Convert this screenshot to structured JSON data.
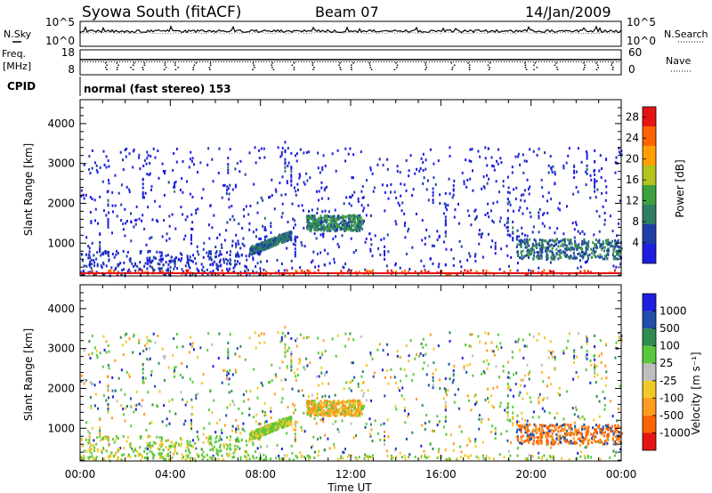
{
  "header": {
    "title": "Syowa South (fitACF)",
    "beam": "Beam 07",
    "date": "14/Jan/2009"
  },
  "left_labels": {
    "nsky": "N.Sky",
    "freq": "Freq.",
    "freq_unit": "[MHz]",
    "cpid": "CPID"
  },
  "right_labels": {
    "nsearch": "N.Search",
    "nave": "Nave"
  },
  "strip_ticks": {
    "noise_left": [
      "10^5",
      "10^0"
    ],
    "noise_right": [
      "10^5",
      "10^0"
    ],
    "freq_left": [
      "18",
      "8"
    ],
    "nave_right": [
      "60",
      "0"
    ]
  },
  "cpid_text": "normal (fast stereo) 153",
  "colors": {
    "power": [
      "#1e1ee0",
      "#1f3fa8",
      "#2f7d64",
      "#3fa03f",
      "#b4c31e",
      "#ffa000",
      "#ff6400",
      "#e61414"
    ],
    "velocity": [
      "#e61414",
      "#ff6400",
      "#ff9b1e",
      "#f0c828",
      "#bebebe",
      "#5ac83c",
      "#2f8c50",
      "#1f4fa8",
      "#1e1ee0"
    ]
  },
  "chart_data": [
    {
      "type": "heatmap",
      "title": "Power",
      "xlabel": "",
      "ylabel": "Slant Range [km]",
      "x_range": [
        "00:00",
        "24:00"
      ],
      "ylim": [
        180,
        4600
      ],
      "y_ticks": [
        "1000",
        "2000",
        "3000",
        "4000"
      ],
      "colorbar": {
        "label": "Power [dB]",
        "ticks": [
          "4",
          "8",
          "12",
          "16",
          "20",
          "24",
          "28"
        ],
        "range": [
          0,
          30
        ]
      },
      "features": [
        {
          "time_range": [
            "10:00",
            "12:30"
          ],
          "range_km": [
            1300,
            1700
          ],
          "level_db": [
            6,
            16
          ]
        },
        {
          "time_range": [
            "07:30",
            "09:20"
          ],
          "range_km": [
            800,
            1200
          ],
          "level_db": [
            6,
            12
          ]
        },
        {
          "time_range": [
            "19:20",
            "24:00"
          ],
          "range_km": [
            600,
            1100
          ],
          "level_db": [
            4,
            14
          ]
        },
        {
          "time_range": [
            "00:00",
            "24:00"
          ],
          "range_km": [
            180,
            350
          ],
          "level_db": [
            16,
            30
          ]
        }
      ]
    },
    {
      "type": "heatmap",
      "title": "Velocity",
      "xlabel": "Time UT",
      "ylabel": "Slant Range [km]",
      "x_range": [
        "00:00",
        "24:00"
      ],
      "x_ticks": [
        "00:00",
        "04:00",
        "08:00",
        "12:00",
        "16:00",
        "20:00",
        "00:00"
      ],
      "ylim": [
        180,
        4600
      ],
      "y_ticks": [
        "1000",
        "2000",
        "3000",
        "4000"
      ],
      "colorbar": {
        "label": "Velocity [m s⁻¹]",
        "ticks": [
          "1000",
          "500",
          "100",
          "25",
          "-25",
          "-100",
          "-500",
          "-1000"
        ]
      },
      "features": [
        {
          "time_range": [
            "10:00",
            "12:30"
          ],
          "range_km": [
            1200,
            1800
          ],
          "velocity_ms": [
            -500,
            100
          ]
        },
        {
          "time_range": [
            "19:30",
            "24:00"
          ],
          "range_km": [
            600,
            1100
          ],
          "velocity_ms": [
            -1000,
            -100
          ]
        },
        {
          "time_range": [
            "00:00",
            "08:00"
          ],
          "range_km": [
            180,
            800
          ],
          "velocity_ms": [
            25,
            500
          ]
        }
      ]
    }
  ]
}
